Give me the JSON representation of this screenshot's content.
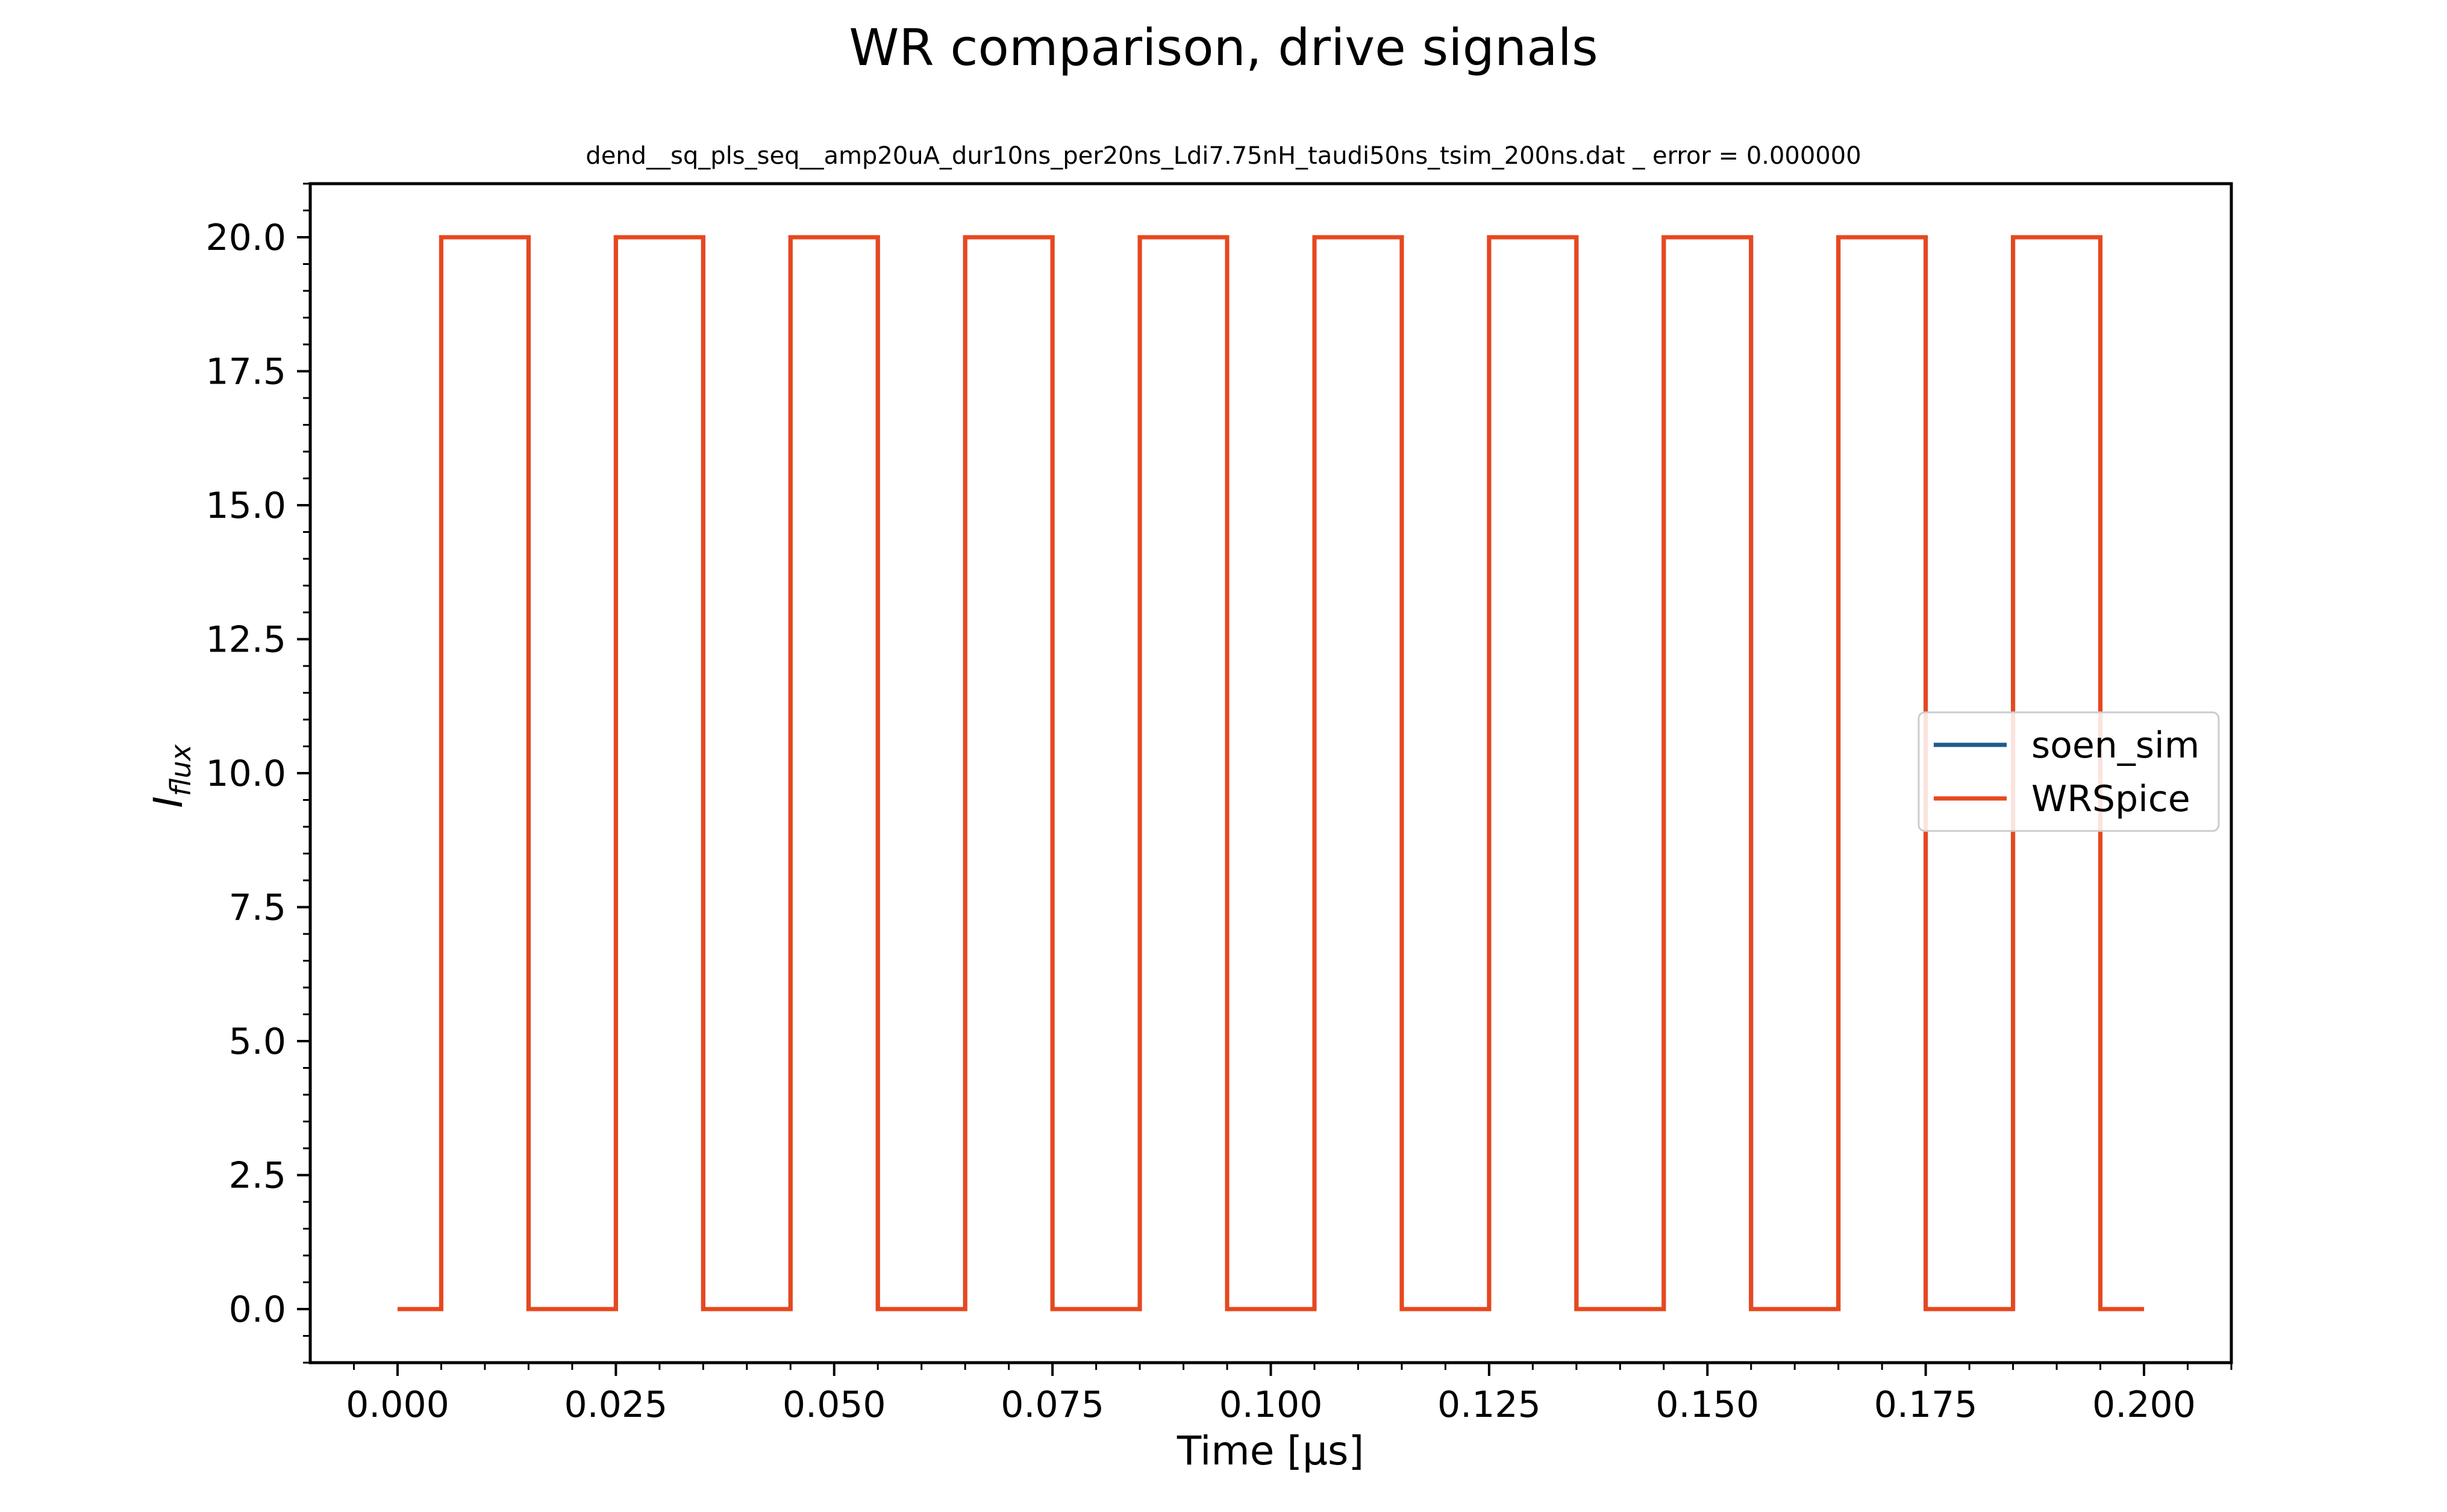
{
  "figure": {
    "suptitle": "WR comparison, drive signals"
  },
  "chart_data": {
    "type": "line",
    "title": "dend__sq_pls_seq__amp20uA_dur10ns_per20ns_Ldi7.75nH_taudi50ns_tsim_200ns.dat _ error = 0.000000",
    "xlabel": "Time [μs]",
    "ylabel_main": "I",
    "ylabel_sub": "flux",
    "xlim": [
      -0.01,
      0.21
    ],
    "ylim": [
      -1.0,
      21.0
    ],
    "x_ticks": [
      0.0,
      0.025,
      0.05,
      0.075,
      0.1,
      0.125,
      0.15,
      0.175,
      0.2
    ],
    "x_tick_labels": [
      "0.000",
      "0.025",
      "0.050",
      "0.075",
      "0.100",
      "0.125",
      "0.150",
      "0.175",
      "0.200"
    ],
    "y_ticks": [
      0.0,
      2.5,
      5.0,
      7.5,
      10.0,
      12.5,
      15.0,
      17.5,
      20.0
    ],
    "y_tick_labels": [
      "0.0",
      "2.5",
      "5.0",
      "7.5",
      "10.0",
      "12.5",
      "15.0",
      "17.5",
      "20.0"
    ],
    "grid": false,
    "legend_position": "center-right",
    "series": [
      {
        "name": "soen_sim",
        "color": "#1f5a8a",
        "x": [
          0.0,
          0.005,
          0.005,
          0.015,
          0.015,
          0.025,
          0.025,
          0.035,
          0.035,
          0.045,
          0.045,
          0.055,
          0.055,
          0.065,
          0.065,
          0.075,
          0.075,
          0.085,
          0.085,
          0.095,
          0.095,
          0.105,
          0.105,
          0.115,
          0.115,
          0.125,
          0.125,
          0.135,
          0.135,
          0.145,
          0.145,
          0.155,
          0.155,
          0.165,
          0.165,
          0.175,
          0.175,
          0.185,
          0.185,
          0.195,
          0.195,
          0.2
        ],
        "y": [
          0,
          0,
          20,
          20,
          0,
          0,
          20,
          20,
          0,
          0,
          20,
          20,
          0,
          0,
          20,
          20,
          0,
          0,
          20,
          20,
          0,
          0,
          20,
          20,
          0,
          0,
          20,
          20,
          0,
          0,
          20,
          20,
          0,
          0,
          20,
          20,
          0,
          0,
          20,
          20,
          0,
          0
        ]
      },
      {
        "name": "WRSpice",
        "color": "#e8471e",
        "x": [
          0.0,
          0.005,
          0.005,
          0.015,
          0.015,
          0.025,
          0.025,
          0.035,
          0.035,
          0.045,
          0.045,
          0.055,
          0.055,
          0.065,
          0.065,
          0.075,
          0.075,
          0.085,
          0.085,
          0.095,
          0.095,
          0.105,
          0.105,
          0.115,
          0.115,
          0.125,
          0.125,
          0.135,
          0.135,
          0.145,
          0.145,
          0.155,
          0.155,
          0.165,
          0.165,
          0.175,
          0.175,
          0.185,
          0.185,
          0.195,
          0.195,
          0.2
        ],
        "y": [
          0,
          0,
          20,
          20,
          0,
          0,
          20,
          20,
          0,
          0,
          20,
          20,
          0,
          0,
          20,
          20,
          0,
          0,
          20,
          20,
          0,
          0,
          20,
          20,
          0,
          0,
          20,
          20,
          0,
          0,
          20,
          20,
          0,
          0,
          20,
          20,
          0,
          0,
          20,
          20,
          0,
          0
        ]
      }
    ]
  }
}
